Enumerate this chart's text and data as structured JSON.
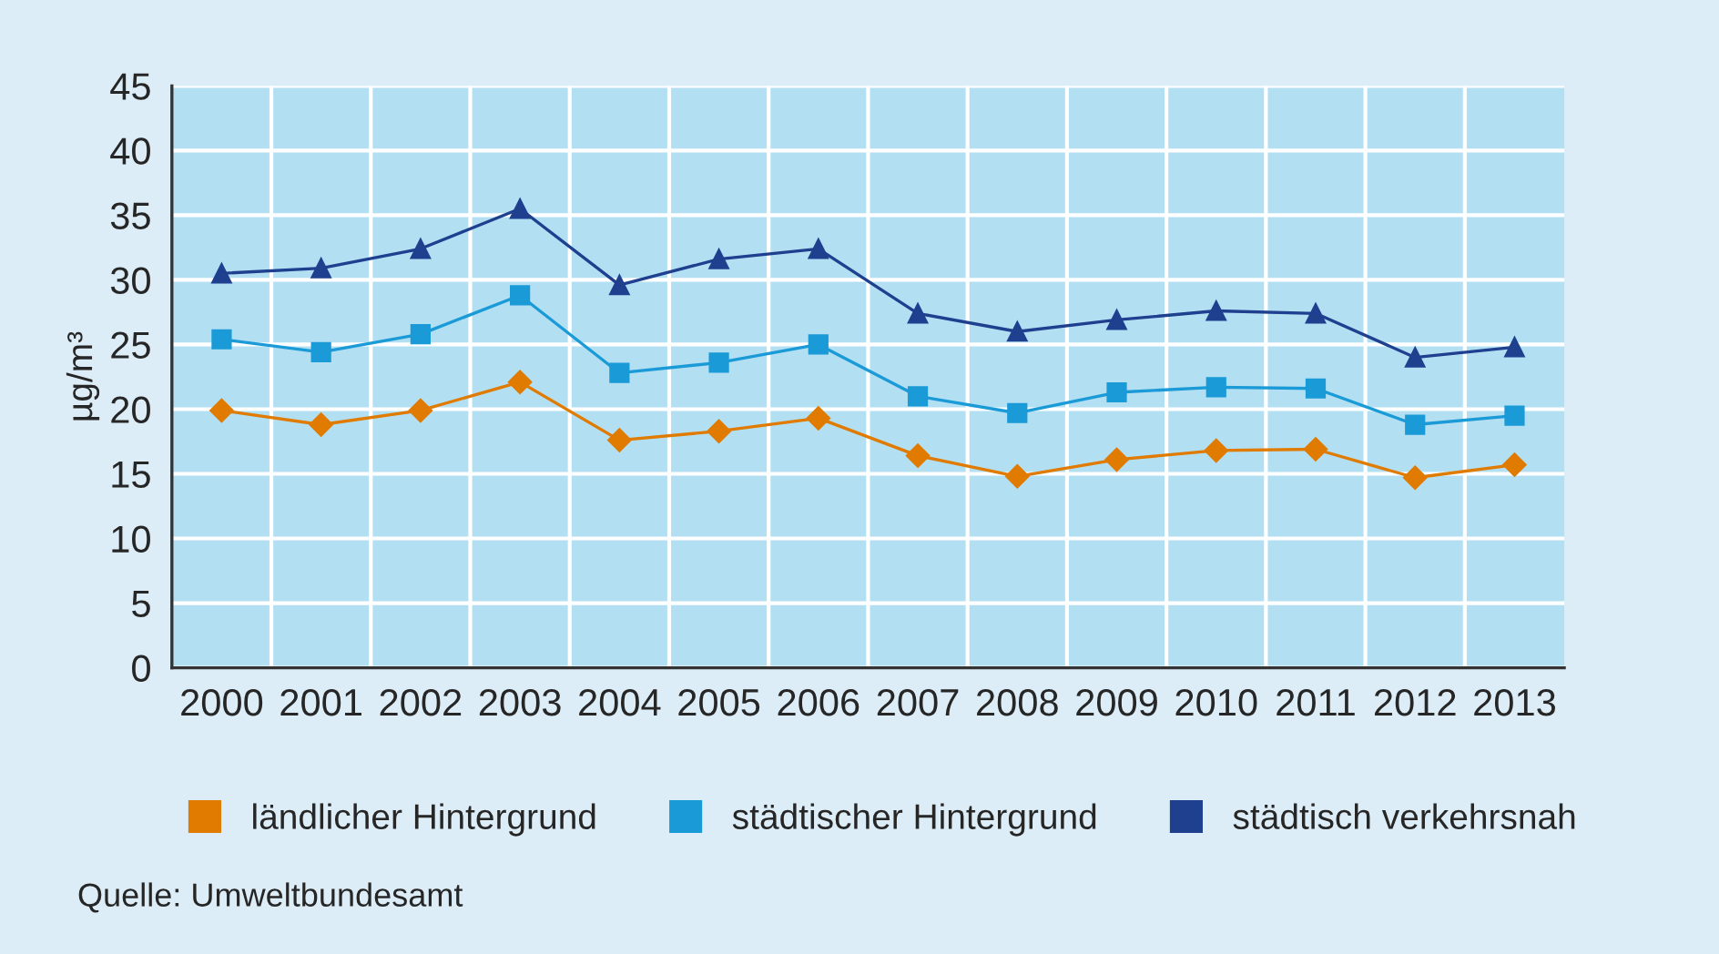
{
  "chart_data": {
    "type": "line",
    "ylabel": "µg/m³",
    "categories": [
      "2000",
      "2001",
      "2002",
      "2003",
      "2004",
      "2005",
      "2006",
      "2007",
      "2008",
      "2009",
      "2010",
      "2011",
      "2012",
      "2013"
    ],
    "series": [
      {
        "name": "ländlicher Hintergrund",
        "color": "#e07b00",
        "marker": "diamond",
        "values": [
          19.9,
          18.8,
          19.9,
          22.1,
          17.6,
          18.3,
          19.3,
          16.4,
          14.8,
          16.1,
          16.8,
          16.9,
          14.7,
          15.7
        ]
      },
      {
        "name": "städtischer Hintergrund",
        "color": "#1a9ad6",
        "marker": "square",
        "values": [
          25.4,
          24.4,
          25.8,
          28.8,
          22.8,
          23.6,
          25.0,
          21.0,
          19.7,
          21.3,
          21.7,
          21.6,
          18.8,
          19.5
        ]
      },
      {
        "name": "städtisch verkehrsnah",
        "color": "#1f3f8f",
        "marker": "triangle",
        "values": [
          30.5,
          30.9,
          32.4,
          35.5,
          29.6,
          31.6,
          32.4,
          27.4,
          26.0,
          26.9,
          27.6,
          27.4,
          24.0,
          24.8
        ]
      }
    ],
    "ylim": [
      0,
      45
    ],
    "yticks": [
      0,
      5,
      10,
      15,
      20,
      25,
      30,
      35,
      40,
      45
    ],
    "grid": true,
    "legend": "bottom",
    "line_style": "solid",
    "annotations": [
      "Quelle: Umweltbundesamt"
    ]
  }
}
